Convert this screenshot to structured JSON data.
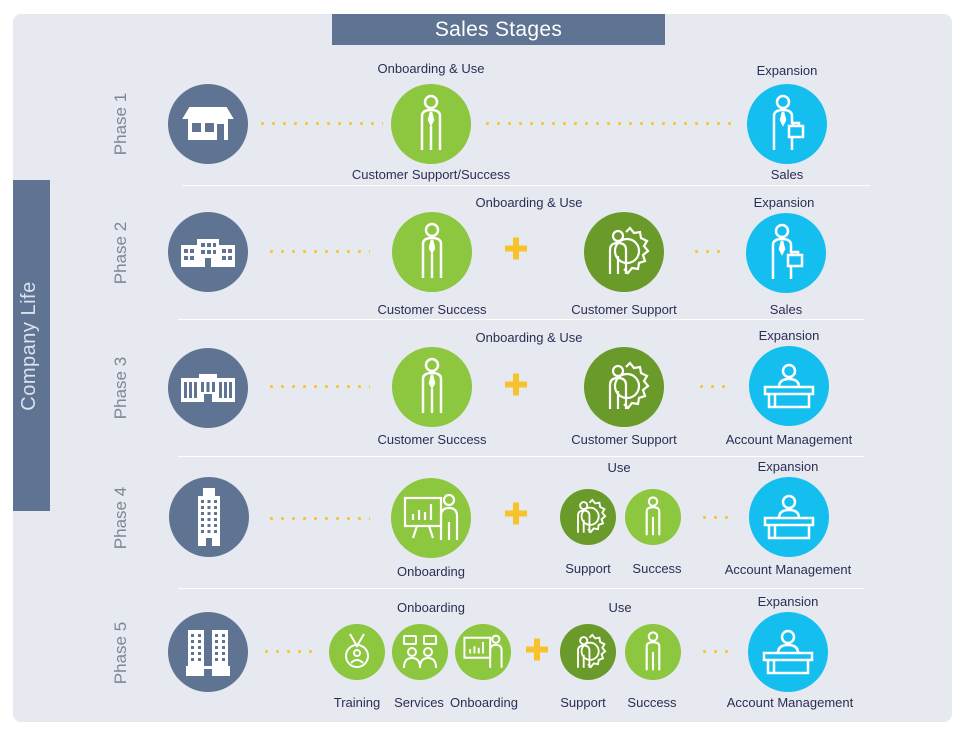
{
  "title": "Sales Stages",
  "side_label": "Company Life",
  "colors": {
    "panel": "#e6e9ef",
    "slate": "#5f7393",
    "lime": "#8dc63f",
    "olive": "#6a9a2a",
    "cyan": "#14bfef",
    "dots": "#f7c22b",
    "text": "#2d2d55"
  },
  "phases": [
    {
      "label": "Phase 1",
      "building_icon": "small-store-icon",
      "top_labels": [
        "Onboarding & Use",
        "Expansion"
      ],
      "bottom_labels": [
        "Customer Support/Success",
        "Sales"
      ]
    },
    {
      "label": "Phase 2",
      "building_icon": "office-building-icon",
      "top_labels": [
        "Onboarding & Use",
        "Expansion"
      ],
      "bottom_labels": [
        "Customer Success",
        "Customer Support",
        "Sales"
      ]
    },
    {
      "label": "Phase 3",
      "building_icon": "corporate-building-icon",
      "top_labels": [
        "Onboarding & Use",
        "Expansion"
      ],
      "bottom_labels": [
        "Customer Success",
        "Customer Support",
        "Account Management"
      ]
    },
    {
      "label": "Phase 4",
      "building_icon": "skyscraper-icon",
      "top_labels": [
        "Use",
        "Expansion"
      ],
      "bottom_labels": [
        "Onboarding",
        "Support",
        "Success",
        "Account Management"
      ]
    },
    {
      "label": "Phase 5",
      "building_icon": "twin-towers-icon",
      "top_labels": [
        "Onboarding",
        "Use",
        "Expansion"
      ],
      "bottom_labels": [
        "Training",
        "Services",
        "Onboarding",
        "Support",
        "Success",
        "Account Management"
      ]
    }
  ]
}
